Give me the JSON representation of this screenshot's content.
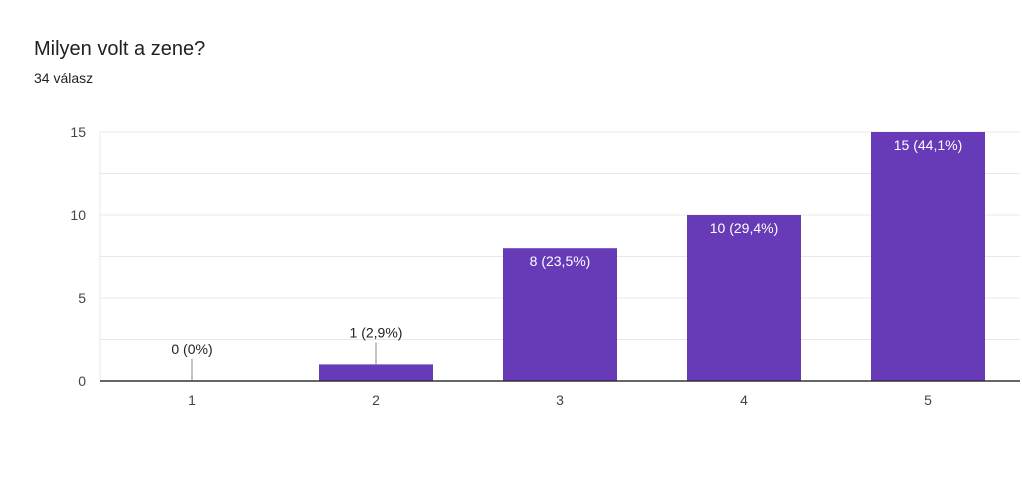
{
  "header": {
    "title": "Milyen volt a zene?",
    "response_count": "34 válasz"
  },
  "colors": {
    "bar": "#673ab7",
    "grid": "#e8e8e8",
    "axis": "#333333",
    "label_inside": "#ffffff",
    "label_outside": "#202124"
  },
  "chart_data": {
    "type": "bar",
    "categories": [
      "1",
      "2",
      "3",
      "4",
      "5"
    ],
    "values": [
      0,
      1,
      8,
      10,
      15
    ],
    "data_labels": [
      "0 (0%)",
      "1 (2,9%)",
      "8 (23,5%)",
      "10 (29,4%)",
      "15 (44,1%)"
    ],
    "ylim": [
      0,
      15
    ],
    "yticks": [
      0,
      5,
      10,
      15
    ],
    "grid": true,
    "legend": "none"
  }
}
